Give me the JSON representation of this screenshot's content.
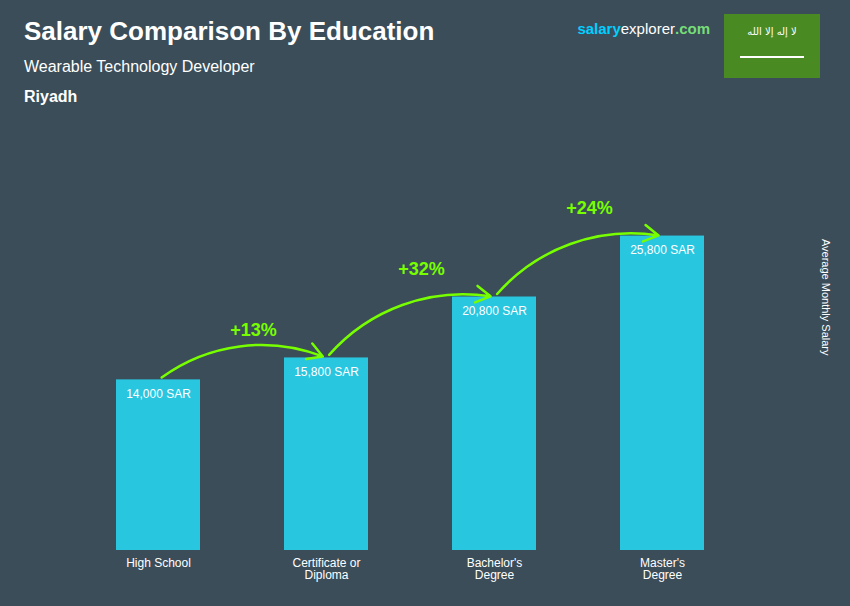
{
  "chart_data": {
    "type": "bar",
    "title": "Salary Comparison By Education",
    "subtitle": "Wearable Technology Developer",
    "location": "Riyadh",
    "ylabel": "Average Monthly Salary",
    "categories": [
      "High School",
      "Certificate or\nDiploma",
      "Bachelor's\nDegree",
      "Master's\nDegree"
    ],
    "values": [
      14000,
      15800,
      20800,
      25800
    ],
    "value_labels": [
      "14,000 SAR",
      "15,800 SAR",
      "20,800 SAR",
      "25,800 SAR"
    ],
    "data_labels": true,
    "color": "#29C6E0",
    "ylim": [
      0,
      32000
    ],
    "tick_labels": "x",
    "grid": false,
    "annotations": [
      {
        "text": "+13%",
        "from": "High School",
        "to": "Certificate or\nDiploma",
        "color": "#77FF00"
      },
      {
        "text": "+32%",
        "from": "Certificate or\nDiploma",
        "to": "Bachelor's\nDegree",
        "color": "#77FF00"
      },
      {
        "text": "+24%",
        "from": "Bachelor's\nDegree",
        "to": "Master's\nDegree",
        "color": "#77FF00"
      }
    ],
    "watermark": [
      {
        "text": "salary",
        "color": "#00CFFF"
      },
      {
        "text": "explorer",
        "color": "#ffffff"
      },
      {
        "text": ".com",
        "color": "#77DD77"
      }
    ],
    "flag": {
      "text": "لا إله إلا الله",
      "color": "#4a8a23"
    }
  }
}
